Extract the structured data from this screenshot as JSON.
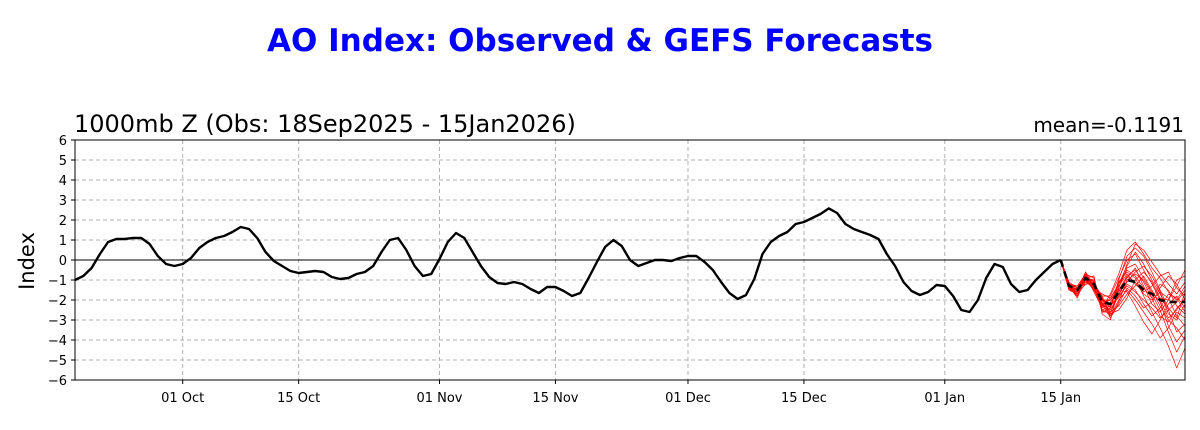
{
  "chart_data": {
    "type": "line",
    "title": "AO Index: Observed & GEFS Forecasts",
    "subtitle": "1000mb Z (Obs: 18Sep2025 - 15Jan2026)",
    "mean_label": "mean=-0.1191",
    "ylabel": "Index",
    "xlabel": "",
    "ylim": [
      -6,
      6
    ],
    "y_ticks": [
      -6,
      -5,
      -4,
      -3,
      -2,
      -1,
      0,
      1,
      2,
      3,
      4,
      5,
      6
    ],
    "y_tick_labels": [
      "−6",
      "−5",
      "−4",
      "−3",
      "−2",
      "−1",
      "0",
      "1",
      "2",
      "3",
      "4",
      "5",
      "6"
    ],
    "x_range": [
      "2025-09-18",
      "2026-01-30"
    ],
    "x_ticks": [
      {
        "date": "2025-10-01",
        "label": "01 Oct"
      },
      {
        "date": "2025-10-15",
        "label": "15 Oct"
      },
      {
        "date": "2025-11-01",
        "label": "01 Nov"
      },
      {
        "date": "2025-11-15",
        "label": "15 Nov"
      },
      {
        "date": "2025-12-01",
        "label": "01 Dec"
      },
      {
        "date": "2025-12-15",
        "label": "15 Dec"
      },
      {
        "date": "2026-01-01",
        "label": "01 Jan"
      },
      {
        "date": "2026-01-15",
        "label": "15 Jan"
      }
    ],
    "grid": true,
    "zero_line": true,
    "observed": {
      "color": "#000000",
      "start_date": "2025-09-18",
      "values": [
        -1.0,
        -0.8,
        -0.4,
        0.3,
        0.9,
        1.05,
        1.05,
        1.1,
        1.1,
        0.8,
        0.2,
        -0.2,
        -0.3,
        -0.2,
        0.1,
        0.6,
        0.9,
        1.1,
        1.2,
        1.4,
        1.65,
        1.55,
        1.1,
        0.4,
        -0.05,
        -0.3,
        -0.55,
        -0.65,
        -0.6,
        -0.55,
        -0.6,
        -0.85,
        -0.95,
        -0.9,
        -0.7,
        -0.6,
        -0.3,
        0.4,
        1.0,
        1.1,
        0.5,
        -0.3,
        -0.8,
        -0.7,
        0.05,
        0.9,
        1.35,
        1.1,
        0.4,
        -0.3,
        -0.85,
        -1.15,
        -1.2,
        -1.1,
        -1.2,
        -1.45,
        -1.65,
        -1.35,
        -1.35,
        -1.55,
        -1.8,
        -1.65,
        -0.9,
        -0.1,
        0.65,
        1.0,
        0.7,
        0.0,
        -0.3,
        -0.15,
        0.0,
        0.0,
        -0.05,
        0.1,
        0.2,
        0.2,
        -0.1,
        -0.5,
        -1.1,
        -1.65,
        -1.95,
        -1.75,
        -0.95,
        0.3,
        0.9,
        1.2,
        1.4,
        1.8,
        1.9,
        2.1,
        2.3,
        2.58,
        2.35,
        1.8,
        1.55,
        1.4,
        1.25,
        1.05,
        0.3,
        -0.3,
        -1.1,
        -1.55,
        -1.75,
        -1.6,
        -1.25,
        -1.3,
        -1.8,
        -2.5,
        -2.6,
        -2.0,
        -0.9,
        -0.2,
        -0.35,
        -1.2,
        -1.6,
        -1.5,
        -1.0,
        -0.6,
        -0.2,
        0.0
      ]
    },
    "forecast_mean": {
      "color": "#000000",
      "start_date": "2026-01-15",
      "values": [
        0.0,
        -1.3,
        -1.5,
        -0.9,
        -1.2,
        -2.1,
        -2.2,
        -1.6,
        -1.0,
        -1.1,
        -1.5,
        -1.7,
        -2.0,
        -2.1,
        -2.1,
        -2.1
      ]
    },
    "ensemble": {
      "color": "#ff0000",
      "start_date": "2026-01-15",
      "members": [
        [
          0.0,
          -1.4,
          -1.7,
          -0.8,
          -1.1,
          -2.0,
          -2.6,
          -1.8,
          -0.8,
          -0.5,
          -1.1,
          -1.9,
          -2.8,
          -3.1,
          -2.4,
          -2.0
        ],
        [
          0.0,
          -1.2,
          -1.3,
          -1.0,
          -1.5,
          -2.3,
          -1.9,
          -1.2,
          -0.3,
          0.4,
          -0.2,
          -1.0,
          -1.7,
          -2.5,
          -3.6,
          -3.2
        ],
        [
          0.0,
          -1.3,
          -1.6,
          -0.7,
          -0.9,
          -2.6,
          -2.4,
          -1.0,
          0.2,
          0.6,
          0.2,
          -0.6,
          -1.5,
          -2.4,
          -2.9,
          -1.6
        ],
        [
          0.0,
          -1.5,
          -1.4,
          -1.1,
          -1.3,
          -1.8,
          -2.9,
          -2.2,
          -1.4,
          -1.8,
          -2.4,
          -2.1,
          -1.4,
          -0.8,
          -1.2,
          -2.0
        ],
        [
          0.0,
          -1.2,
          -1.8,
          -0.9,
          -1.0,
          -2.2,
          -2.0,
          -1.5,
          -1.6,
          -2.3,
          -3.1,
          -3.7,
          -3.0,
          -2.2,
          -1.8,
          -2.4
        ],
        [
          0.0,
          -1.4,
          -1.5,
          -0.6,
          -1.4,
          -2.5,
          -2.3,
          -1.1,
          -0.6,
          -0.9,
          -1.8,
          -2.6,
          -3.4,
          -4.3,
          -5.4,
          -4.4
        ],
        [
          0.0,
          -1.3,
          -1.7,
          -1.2,
          -1.1,
          -1.9,
          -2.7,
          -2.5,
          -1.9,
          -1.0,
          -0.6,
          -1.1,
          -1.9,
          -2.0,
          -1.3,
          -0.5
        ],
        [
          0.0,
          -1.1,
          -1.4,
          -0.8,
          -1.6,
          -2.4,
          -1.7,
          -0.7,
          0.5,
          0.9,
          0.3,
          -0.4,
          -0.9,
          -1.6,
          -2.0,
          -1.3
        ],
        [
          0.0,
          -1.5,
          -1.6,
          -1.0,
          -1.2,
          -2.0,
          -2.2,
          -1.9,
          -1.2,
          -1.5,
          -2.2,
          -2.8,
          -2.4,
          -1.7,
          -1.9,
          -2.6
        ],
        [
          0.0,
          -1.3,
          -1.9,
          -0.9,
          -0.8,
          -2.7,
          -3.0,
          -1.4,
          -0.4,
          -0.2,
          -0.9,
          -1.6,
          -2.1,
          -3.3,
          -4.1,
          -3.5
        ],
        [
          0.0,
          -1.2,
          -1.5,
          -1.1,
          -1.4,
          -1.7,
          -1.9,
          -1.3,
          -0.7,
          -1.2,
          -1.6,
          -1.3,
          -0.8,
          -0.6,
          -1.4,
          -1.8
        ],
        [
          0.0,
          -1.4,
          -1.3,
          -0.7,
          -1.5,
          -2.2,
          -2.5,
          -1.7,
          -1.1,
          -0.6,
          -0.3,
          -0.8,
          -1.6,
          -2.7,
          -3.0,
          -2.2
        ],
        [
          0.0,
          -1.3,
          -1.6,
          -1.0,
          -1.0,
          -2.1,
          -2.8,
          -2.0,
          -1.5,
          -2.0,
          -2.6,
          -3.2,
          -3.9,
          -3.4,
          -2.6,
          -2.9
        ],
        [
          0.0,
          -1.5,
          -1.7,
          -0.8,
          -1.3,
          -2.4,
          -2.1,
          -1.6,
          -0.9,
          -0.4,
          -1.3,
          -2.2,
          -2.6,
          -2.0,
          -1.0,
          -0.8
        ],
        [
          0.0,
          -1.2,
          -1.4,
          -1.2,
          -1.2,
          -1.9,
          -2.4,
          -1.2,
          -0.5,
          -0.8,
          -1.4,
          -1.9,
          -1.2,
          -1.5,
          -2.3,
          -2.7
        ],
        [
          0.0,
          -1.4,
          -1.8,
          -0.9,
          -1.1,
          -2.6,
          -2.6,
          -2.3,
          -1.7,
          -1.3,
          -0.8,
          -1.5,
          -2.3,
          -3.0,
          -3.4,
          -4.0
        ],
        [
          0.0,
          -1.3,
          -1.5,
          -0.6,
          -1.3,
          -2.0,
          -2.0,
          -1.4,
          -0.2,
          0.8,
          0.5,
          -0.1,
          -0.7,
          -1.2,
          -1.7,
          -1.1
        ],
        [
          0.0,
          -1.4,
          -1.6,
          -1.1,
          -1.0,
          -2.3,
          -2.3,
          -1.8,
          -1.3,
          -1.6,
          -2.0,
          -2.4,
          -2.9,
          -2.5,
          -2.1,
          -1.5
        ],
        [
          0.0,
          -1.2,
          -1.7,
          -0.7,
          -1.4,
          -2.5,
          -2.7,
          -1.5,
          -0.8,
          -1.1,
          -1.7,
          -2.0,
          -1.6,
          -1.9,
          -2.8,
          -3.3
        ],
        [
          0.0,
          -1.5,
          -1.4,
          -1.0,
          -1.2,
          -1.8,
          -1.8,
          -0.9,
          0.0,
          0.3,
          -0.5,
          -1.2,
          -2.0,
          -2.9,
          -2.5,
          -1.9
        ],
        [
          0.0,
          -1.3,
          -1.6,
          -0.9,
          -1.5,
          -2.2,
          -2.9,
          -2.1,
          -1.0,
          -0.7,
          -1.0,
          -1.7,
          -2.5,
          -3.6,
          -4.6,
          -3.8
        ]
      ]
    }
  }
}
